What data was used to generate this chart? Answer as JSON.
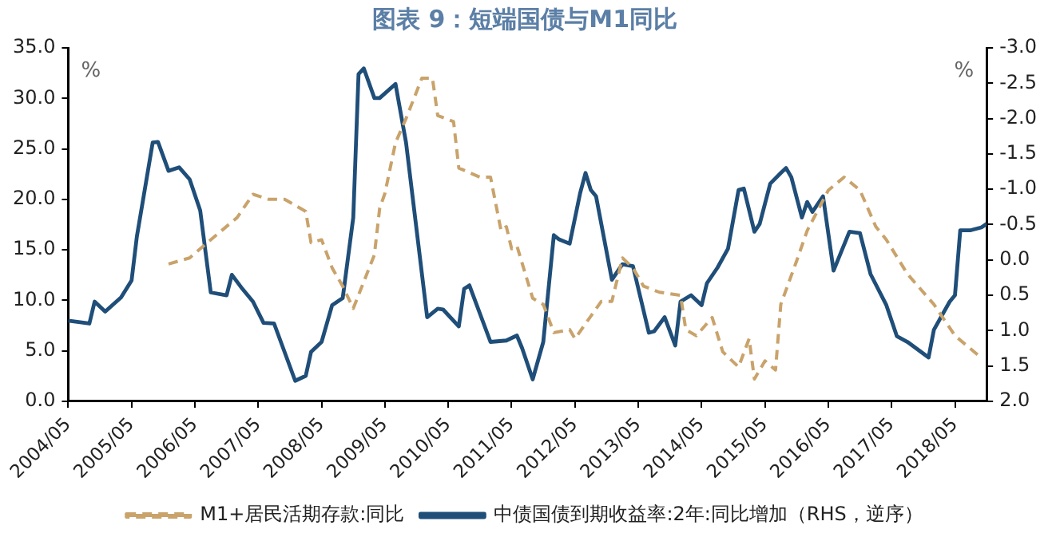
{
  "chart_data": {
    "type": "line",
    "title": "图表 9：短端国债与M1同比",
    "ylabel": "%",
    "y2label": "%",
    "xlim": [
      "2004-05",
      "2018-11"
    ],
    "xticks": [
      {
        "value": "2004-05",
        "label": "2004/05"
      },
      {
        "value": "2005-05",
        "label": "2005/05"
      },
      {
        "value": "2006-05",
        "label": "2006/05"
      },
      {
        "value": "2007-05",
        "label": "2007/05"
      },
      {
        "value": "2008-05",
        "label": "2008/05"
      },
      {
        "value": "2009-05",
        "label": "2009/05"
      },
      {
        "value": "2010-05",
        "label": "2010/05"
      },
      {
        "value": "2011-05",
        "label": "2011/05"
      },
      {
        "value": "2012-05",
        "label": "2012/05"
      },
      {
        "value": "2013-05",
        "label": "2013/05"
      },
      {
        "value": "2014-05",
        "label": "2014/05"
      },
      {
        "value": "2015-05",
        "label": "2015/05"
      },
      {
        "value": "2016-05",
        "label": "2016/05"
      },
      {
        "value": "2017-05",
        "label": "2017/05"
      },
      {
        "value": "2018-05",
        "label": "2018/05"
      }
    ],
    "ylim": [
      0,
      35
    ],
    "yticks": [
      {
        "value": 0,
        "label": "0.0"
      },
      {
        "value": 5,
        "label": "5.0"
      },
      {
        "value": 10,
        "label": "10.0"
      },
      {
        "value": 15,
        "label": "15.0"
      },
      {
        "value": 20,
        "label": "20.0"
      },
      {
        "value": 25,
        "label": "25.0"
      },
      {
        "value": 30,
        "label": "30.0"
      },
      {
        "value": 35,
        "label": "35.0"
      }
    ],
    "y2lim": [
      2,
      -3
    ],
    "y2ticks": [
      {
        "value": -3,
        "label": "-3.0"
      },
      {
        "value": -2.5,
        "label": "-2.5"
      },
      {
        "value": -2,
        "label": "-2.0"
      },
      {
        "value": -1.5,
        "label": "-1.5"
      },
      {
        "value": -1,
        "label": "-1.0"
      },
      {
        "value": -0.5,
        "label": "-0.5"
      },
      {
        "value": 0,
        "label": "0.0"
      },
      {
        "value": 0.5,
        "label": "0.5"
      },
      {
        "value": 1,
        "label": "1.0"
      },
      {
        "value": 1.5,
        "label": "1.5"
      },
      {
        "value": 2,
        "label": "2.0"
      }
    ],
    "grid": false,
    "legend": "bottom",
    "marker": "none",
    "series": [
      {
        "name": "M1+居民活期存款:同比",
        "color": "#c9a36b",
        "line_style": "dashed",
        "x": [
          "2005-12",
          "2006-04",
          "2006-08",
          "2007-01",
          "2007-04",
          "2007-07",
          "2007-10",
          "2008-02",
          "2008-03",
          "2008-05",
          "2008-07",
          "2008-09",
          "2008-11",
          "2009-03",
          "2009-04",
          "2009-05",
          "2009-07",
          "2009-09",
          "2009-12",
          "2010-02",
          "2010-03",
          "2010-06",
          "2010-07",
          "2010-11",
          "2011-01",
          "2011-03",
          "2011-04",
          "2011-05",
          "2011-06",
          "2011-09",
          "2011-11",
          "2012-01",
          "2012-04",
          "2012-05",
          "2012-10",
          "2012-12",
          "2013-02",
          "2013-04",
          "2013-06",
          "2013-09",
          "2014-01",
          "2014-02",
          "2014-04",
          "2014-07",
          "2014-09",
          "2014-12",
          "2015-02",
          "2015-03",
          "2015-05",
          "2015-07",
          "2015-08",
          "2015-11",
          "2016-01",
          "2016-05",
          "2016-08",
          "2016-11",
          "2017-02",
          "2017-04",
          "2017-08",
          "2018-01",
          "2018-05",
          "2018-10"
        ],
        "values": [
          13.6,
          14.2,
          16.0,
          18.2,
          20.5,
          20.0,
          20.0,
          18.8,
          15.7,
          16.0,
          13.2,
          11.4,
          9.2,
          14.5,
          19.1,
          20.6,
          25.6,
          28.0,
          32.0,
          32.0,
          28.3,
          27.7,
          23.1,
          22.2,
          22.2,
          16.9,
          17.3,
          15.1,
          15.4,
          10.2,
          9.6,
          6.8,
          7.1,
          6.2,
          9.9,
          9.9,
          14.2,
          13.2,
          11.4,
          10.8,
          10.5,
          7.1,
          6.5,
          8.3,
          4.9,
          3.4,
          6.2,
          2.2,
          4.0,
          3.1,
          9.6,
          13.9,
          16.9,
          20.9,
          22.2,
          20.9,
          17.3,
          16.0,
          12.6,
          9.6,
          6.5,
          4.3
        ]
      },
      {
        "name": "中债国债到期收益率:2年:同比增加（RHS，逆序）",
        "color": "#1f4e79",
        "line_style": "solid",
        "axis": "y2",
        "x": [
          "2004-05",
          "2004-09",
          "2004-10",
          "2004-12",
          "2005-03",
          "2005-05",
          "2005-06",
          "2005-09",
          "2005-10",
          "2005-12",
          "2006-02",
          "2006-04",
          "2006-06",
          "2006-08",
          "2006-11",
          "2006-12",
          "2007-02",
          "2007-04",
          "2007-06",
          "2007-08",
          "2007-12",
          "2008-02",
          "2008-03",
          "2008-05",
          "2008-07",
          "2008-09",
          "2008-11",
          "2008-12",
          "2009-01",
          "2009-03",
          "2009-04",
          "2009-07",
          "2009-09",
          "2010-01",
          "2010-03",
          "2010-04",
          "2010-07",
          "2010-08",
          "2010-09",
          "2011-01",
          "2011-04",
          "2011-06",
          "2011-07",
          "2011-09",
          "2011-11",
          "2012-01",
          "2012-02",
          "2012-04",
          "2012-06",
          "2012-07",
          "2012-08",
          "2012-09",
          "2012-12",
          "2013-02",
          "2013-04",
          "2013-07",
          "2013-08",
          "2013-10",
          "2013-12",
          "2014-01",
          "2014-03",
          "2014-05",
          "2014-06",
          "2014-08",
          "2014-10",
          "2014-12",
          "2015-01",
          "2015-03",
          "2015-04",
          "2015-06",
          "2015-08",
          "2015-09",
          "2015-10",
          "2015-12",
          "2016-01",
          "2016-02",
          "2016-04",
          "2016-06",
          "2016-09",
          "2016-11",
          "2017-01",
          "2017-04",
          "2017-06",
          "2017-08",
          "2017-12",
          "2018-01",
          "2018-04",
          "2018-05",
          "2018-06",
          "2018-08",
          "2018-10",
          "2018-11"
        ],
        "values": [
          0.86,
          0.9,
          0.59,
          0.73,
          0.53,
          0.29,
          -0.33,
          -1.66,
          -1.67,
          -1.26,
          -1.31,
          -1.14,
          -0.7,
          0.46,
          0.5,
          0.21,
          0.41,
          0.59,
          0.89,
          0.9,
          1.71,
          1.64,
          1.3,
          1.16,
          0.64,
          0.54,
          -0.6,
          -2.63,
          -2.71,
          -2.29,
          -2.29,
          -2.49,
          -1.66,
          0.81,
          0.69,
          0.7,
          0.94,
          0.41,
          0.36,
          1.16,
          1.14,
          1.07,
          1.25,
          1.69,
          1.16,
          -0.35,
          -0.29,
          -0.23,
          -0.95,
          -1.23,
          -0.99,
          -0.9,
          0.28,
          0.06,
          0.09,
          1.03,
          1.01,
          0.81,
          1.21,
          0.59,
          0.5,
          0.64,
          0.33,
          0.11,
          -0.16,
          -0.99,
          -1.01,
          -0.4,
          -0.51,
          -1.08,
          -1.23,
          -1.3,
          -1.17,
          -0.6,
          -0.82,
          -0.68,
          -0.9,
          0.15,
          -0.4,
          -0.38,
          0.2,
          0.64,
          1.08,
          1.16,
          1.38,
          0.99,
          0.59,
          0.5,
          -0.42,
          -0.42,
          -0.46,
          -0.51
        ]
      }
    ]
  }
}
